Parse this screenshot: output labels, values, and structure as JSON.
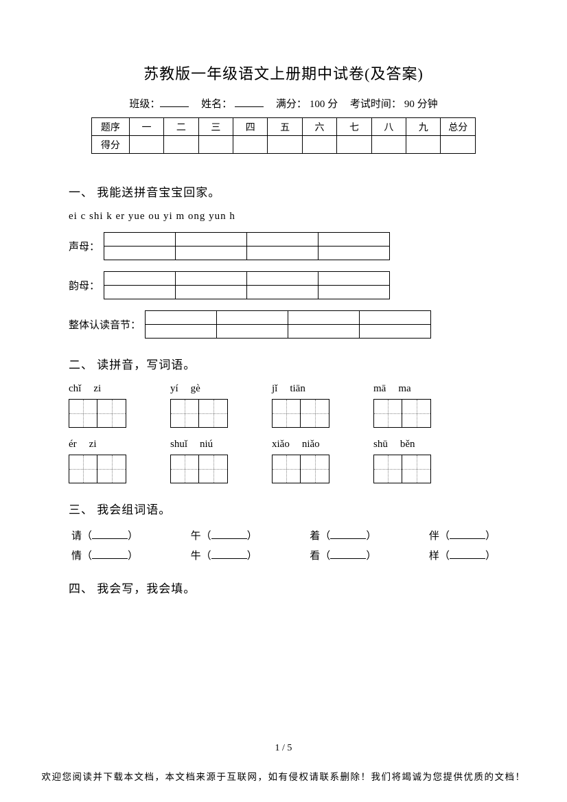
{
  "title": "苏教版一年级语文上册期中试卷(及答案)",
  "meta": {
    "class_label": "班级：",
    "name_label": "姓名：",
    "fullscore_label": "满分：",
    "fullscore_value": "100 分",
    "time_label": "考试时间：",
    "time_value": "90 分钟"
  },
  "score_table": {
    "row1": [
      "题序",
      "一",
      "二",
      "三",
      "四",
      "五",
      "六",
      "七",
      "八",
      "九",
      "总分"
    ],
    "row2_label": "得分"
  },
  "s1": {
    "heading": "一、 我能送拼音宝宝回家。",
    "pinyin_list": "ei   c   shi   k   er   yue   ou   yi   m   ong       yun   h",
    "cat1_label": "声母：",
    "cat2_label": "韵母：",
    "cat3_label": "整体认读音节：",
    "cat_cols": 4,
    "cat_rows": 2
  },
  "s2": {
    "heading": "二、 读拼音，写词语。",
    "row1": [
      [
        "chǐ",
        "zi"
      ],
      [
        "yí",
        "gè"
      ],
      [
        "jǐ",
        "tiān"
      ],
      [
        "mā",
        "ma"
      ]
    ],
    "row2": [
      [
        "ér",
        "zi"
      ],
      [
        "shuǐ",
        "niú"
      ],
      [
        "xiǎo",
        "niǎo"
      ],
      [
        "shū",
        "běn"
      ]
    ]
  },
  "s3": {
    "heading": "三、 我会组词语。",
    "row1": [
      "请",
      "午",
      "着",
      "伴"
    ],
    "row2": [
      "情",
      "牛",
      "看",
      "样"
    ]
  },
  "s4": {
    "heading": "四、 我会写，我会填。"
  },
  "page_num": "1 / 5",
  "footer": "欢迎您阅读并下载本文档，本文档来源于互联网，如有侵权请联系删除！我们将竭诚为您提供优质的文档！",
  "colors": {
    "text": "#000000",
    "bg": "#ffffff",
    "grid_dotted": "#888888"
  }
}
